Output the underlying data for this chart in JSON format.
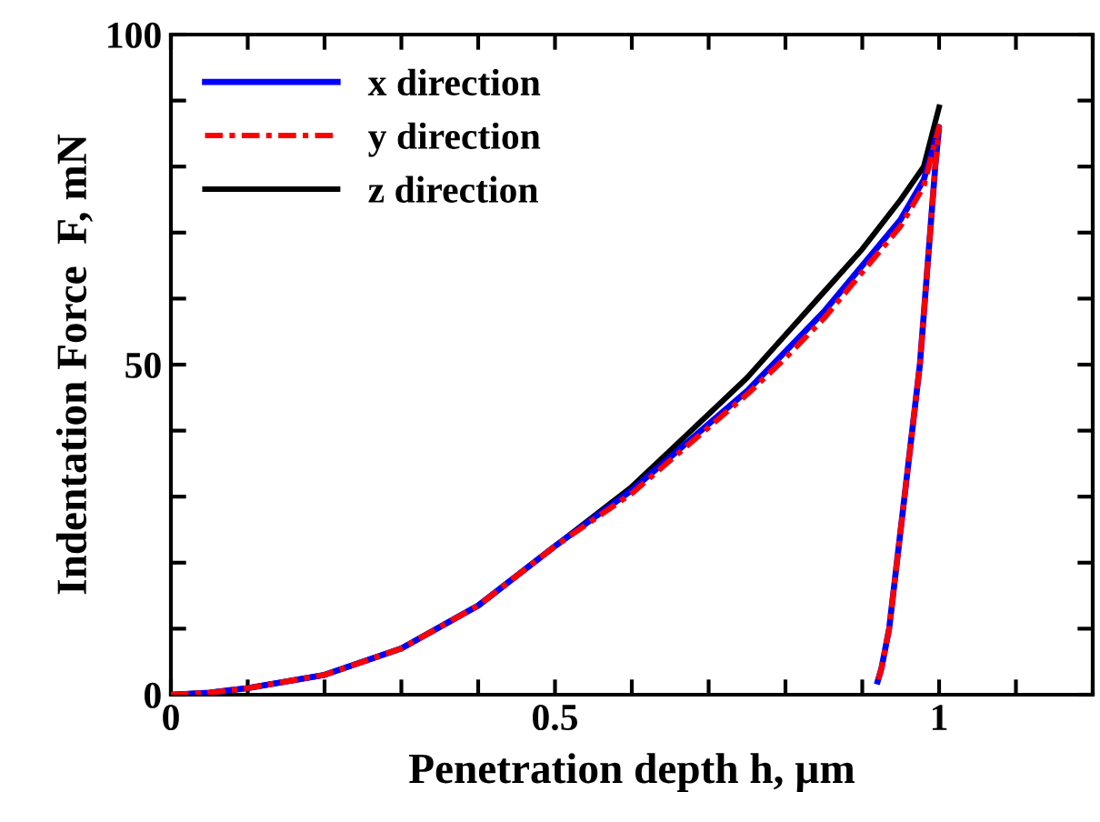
{
  "chart_data": {
    "type": "line",
    "xlabel": "Penetration depth h, µm",
    "ylabel": "Indentation Force  F, mN",
    "xlim": [
      0,
      1.2
    ],
    "ylim": [
      0,
      100
    ],
    "xticks": [
      0,
      {
        "value": 0.1,
        "label": null
      },
      {
        "value": 0.2,
        "label": null
      },
      {
        "value": 0.3,
        "label": null
      },
      {
        "value": 0.4,
        "label": null
      },
      0.5,
      {
        "value": 0.6,
        "label": null
      },
      {
        "value": 0.7,
        "label": null
      },
      {
        "value": 0.8,
        "label": null
      },
      {
        "value": 0.9,
        "label": null
      },
      1,
      {
        "value": 1.1,
        "label": null
      },
      {
        "value": 1.2,
        "label": null
      }
    ],
    "yticks": [
      0,
      {
        "value": 10,
        "label": null
      },
      {
        "value": 20,
        "label": null
      },
      {
        "value": 30,
        "label": null
      },
      {
        "value": 40,
        "label": null
      },
      50,
      {
        "value": 60,
        "label": null
      },
      {
        "value": 70,
        "label": null
      },
      {
        "value": 80,
        "label": null
      },
      {
        "value": 90,
        "label": null
      },
      100
    ],
    "grid": false,
    "legend": "top left",
    "marker": "none",
    "series": [
      {
        "name": "x direction",
        "color": "#0000ff",
        "line_style": "solid",
        "x": [
          0,
          0.05,
          0.1,
          0.2,
          0.3,
          0.4,
          0.5,
          0.6,
          0.65,
          0.7,
          0.75,
          0.8,
          0.85,
          0.9,
          0.95,
          0.98,
          1.0,
          0.995,
          0.985,
          0.975,
          0.96,
          0.945,
          0.935,
          0.925,
          0.92
        ],
        "values": [
          0,
          0.3,
          1,
          3,
          7,
          13.5,
          22.5,
          31,
          36,
          41,
          46,
          52,
          58,
          65,
          72,
          78,
          86,
          80,
          65,
          50,
          35,
          20,
          10,
          4,
          2
        ]
      },
      {
        "name": "y direction",
        "color": "#ff0000",
        "line_style": "dashdot",
        "x": [
          0,
          0.05,
          0.1,
          0.2,
          0.3,
          0.4,
          0.5,
          0.6,
          0.65,
          0.7,
          0.75,
          0.8,
          0.85,
          0.9,
          0.95,
          0.98,
          1.0,
          0.995,
          0.985,
          0.975,
          0.96,
          0.945,
          0.935,
          0.925,
          0.92
        ],
        "values": [
          0,
          0.3,
          1,
          3,
          7,
          13.5,
          22.5,
          30.5,
          35.5,
          40.5,
          45.5,
          51,
          57,
          64,
          71,
          77,
          86,
          80,
          65,
          50,
          35,
          20,
          10,
          4,
          2
        ]
      },
      {
        "name": "z direction",
        "color": "#000000",
        "line_style": "solid",
        "x": [
          0,
          0.05,
          0.1,
          0.2,
          0.3,
          0.4,
          0.5,
          0.6,
          0.65,
          0.7,
          0.75,
          0.8,
          0.85,
          0.9,
          0.95,
          0.98,
          1.0
        ],
        "values": [
          0,
          0.3,
          1,
          3,
          7,
          13.5,
          22.5,
          31.5,
          37,
          42.5,
          48,
          54.5,
          61,
          67.5,
          75,
          80,
          89
        ]
      }
    ]
  }
}
